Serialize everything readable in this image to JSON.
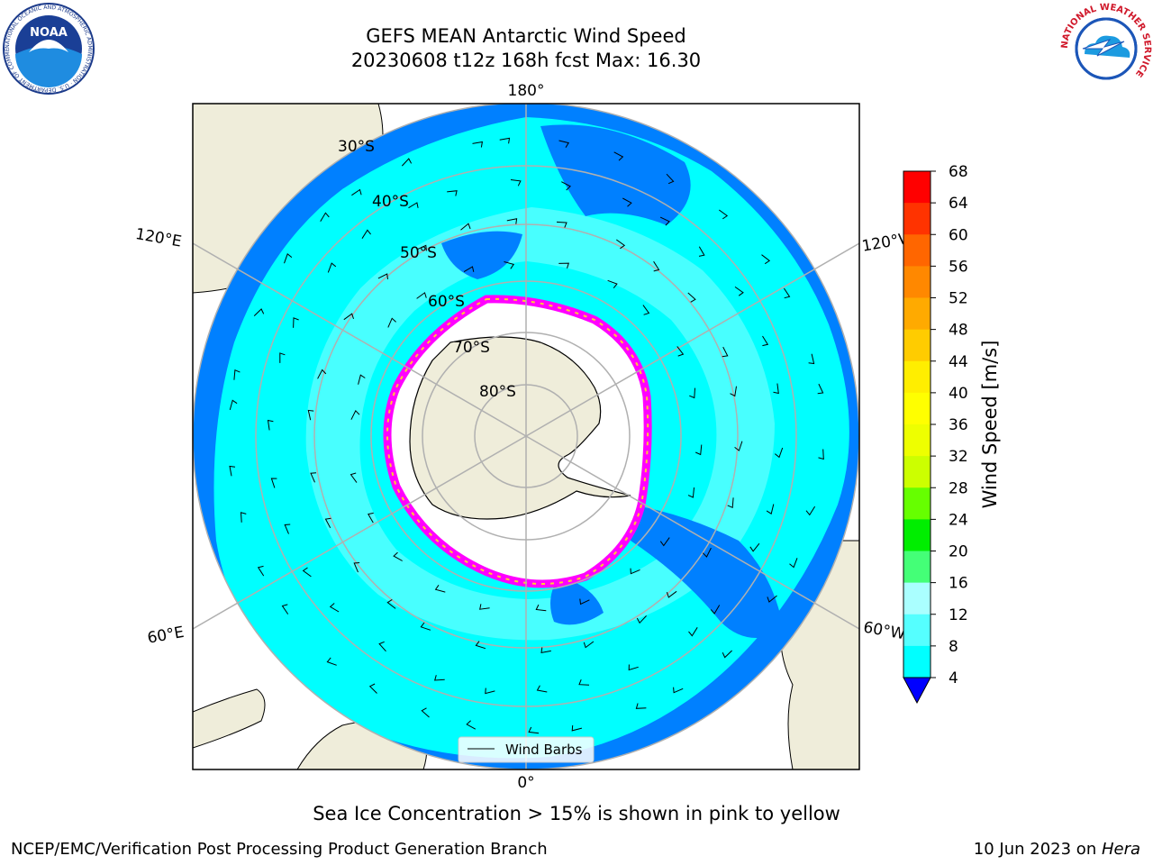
{
  "header": {
    "title_line1": "GEFS MEAN Antarctic Wind Speed",
    "title_line2": "20230608 t12z 168h fcst   Max: 16.30"
  },
  "logos": {
    "left": {
      "text": "NOAA",
      "ring_text": "NATIONAL OCEANIC AND ATMOSPHERIC ADMINISTRATION · U.S. DEPARTMENT OF COMMERCE"
    },
    "right": {
      "ring_text": "NATIONAL WEATHER SERVICE"
    }
  },
  "map": {
    "longitude_labels": {
      "top": "180°",
      "bottom": "0°",
      "upper_left": "120°E",
      "upper_right": "120°W",
      "lower_left": "60°E",
      "lower_right": "60°W"
    },
    "latitude_labels": [
      "30°S",
      "40°S",
      "50°S",
      "60°S",
      "70°S",
      "80°S"
    ],
    "legend_label": "Wind Barbs",
    "colors": {
      "land": "#efedda",
      "ocean_dark": "#0080ff",
      "ocean_cyan": "#00ffff",
      "ocean_light": "#55ffff",
      "sea_ice": "#ff00ff",
      "grid": "#b0b0b0"
    }
  },
  "colorbar": {
    "label": "Wind Speed [m/s]",
    "ticks": [
      "68",
      "64",
      "60",
      "56",
      "52",
      "48",
      "44",
      "40",
      "36",
      "32",
      "28",
      "24",
      "20",
      "16",
      "12",
      "8",
      "4"
    ],
    "colors": [
      "#ff0000",
      "#ff3300",
      "#ff6600",
      "#ff8800",
      "#ffaa00",
      "#ffcc00",
      "#ffee00",
      "#ffff00",
      "#eeff00",
      "#ccff00",
      "#66ff00",
      "#00ee00",
      "#44ff77",
      "#aaffff",
      "#55ffff",
      "#00ffff",
      "#0080ff"
    ],
    "extend_color": "#0000ff"
  },
  "notes": {
    "sea_ice": "Sea Ice Concentration > 15% is shown in pink to yellow"
  },
  "footer": {
    "left": "NCEP/EMC/Verification Post Processing Product Generation Branch",
    "date": "10 Jun 2023",
    "on": " on ",
    "host": "Hera"
  }
}
